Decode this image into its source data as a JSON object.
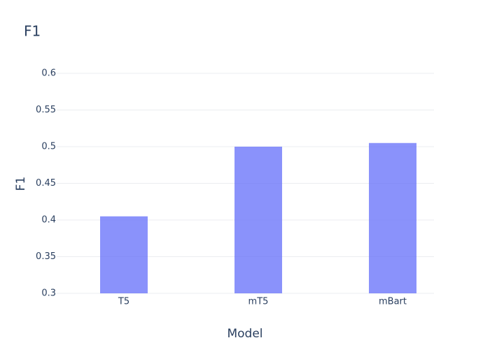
{
  "chart_data": {
    "type": "bar",
    "title": "F1",
    "x_label": "Model",
    "y_label": "F1",
    "categories": [
      "T5",
      "mT5",
      "mBart"
    ],
    "values": [
      0.405,
      0.5,
      0.505
    ],
    "color": "#636efa",
    "ylim": [
      0.3,
      0.6
    ],
    "yticks": [
      0.3,
      0.35,
      0.4,
      0.45,
      0.5,
      0.55,
      0.6
    ],
    "grid": true
  }
}
